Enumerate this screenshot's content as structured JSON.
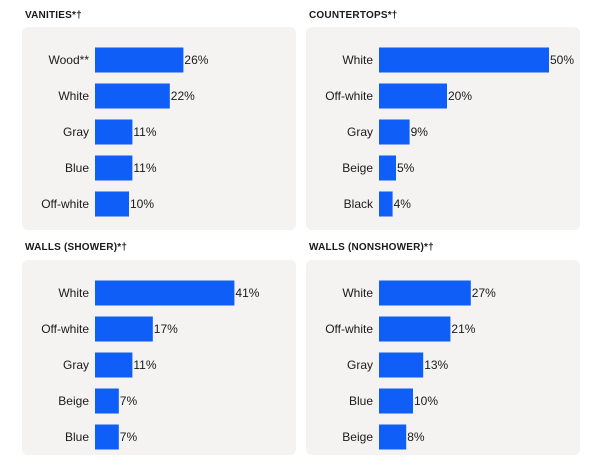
{
  "colors": {
    "bar": "#0f5ef7",
    "panel_bg": "#f4f3f1"
  },
  "chart_data": [
    {
      "type": "bar",
      "orientation": "horizontal",
      "title": "VANITIES*†",
      "categories": [
        "Wood**",
        "White",
        "Gray",
        "Blue",
        "Off-white"
      ],
      "values": [
        26,
        22,
        11,
        11,
        10
      ],
      "value_labels": [
        "26%",
        "22%",
        "11%",
        "11%",
        "10%"
      ],
      "xlim": [
        0,
        50
      ]
    },
    {
      "type": "bar",
      "orientation": "horizontal",
      "title": "COUNTERTOPS*†",
      "categories": [
        "White",
        "Off-white",
        "Gray",
        "Beige",
        "Black"
      ],
      "values": [
        50,
        20,
        9,
        5,
        4
      ],
      "value_labels": [
        "50%",
        "20%",
        "9%",
        "5%",
        "4%"
      ],
      "xlim": [
        0,
        50
      ]
    },
    {
      "type": "bar",
      "orientation": "horizontal",
      "title": "WALLS (SHOWER)*†",
      "categories": [
        "White",
        "Off-white",
        "Gray",
        "Beige",
        "Blue"
      ],
      "values": [
        41,
        17,
        11,
        7,
        7
      ],
      "value_labels": [
        "41%",
        "17%",
        "11%",
        "7%",
        "7%"
      ],
      "xlim": [
        0,
        50
      ]
    },
    {
      "type": "bar",
      "orientation": "horizontal",
      "title": "WALLS (NONSHOWER)*†",
      "categories": [
        "White",
        "Off-white",
        "Gray",
        "Blue",
        "Beige"
      ],
      "values": [
        27,
        21,
        13,
        10,
        8
      ],
      "value_labels": [
        "27%",
        "21%",
        "13%",
        "10%",
        "8%"
      ],
      "xlim": [
        0,
        50
      ]
    }
  ]
}
